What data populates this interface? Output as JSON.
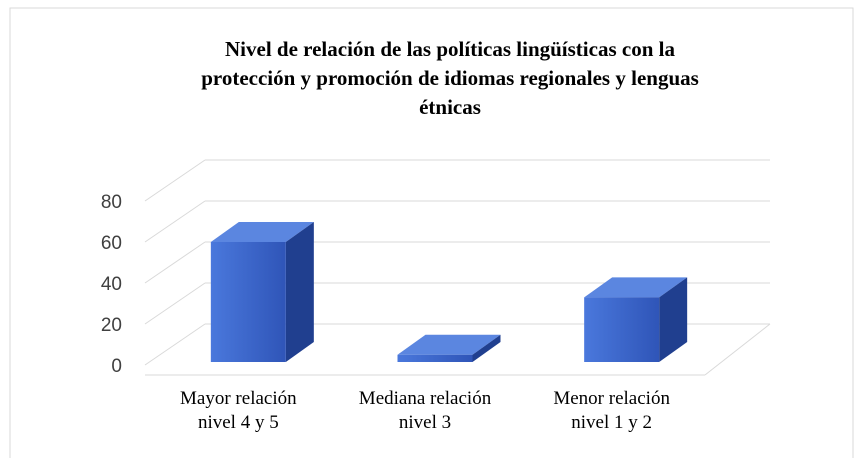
{
  "chart_data": {
    "type": "bar3d",
    "title": [
      "Nivel de relación de las políticas lingüísticas con la",
      "protección y promoción de idiomas regionales y lenguas",
      "étnicas"
    ],
    "categories": [
      [
        "Mayor relación",
        "nivel 4 y 5"
      ],
      [
        "Mediana relación",
        "nivel 3"
      ],
      [
        "Menor relación",
        "nivel 1 y 2"
      ]
    ],
    "values": [
      60,
      5,
      33
    ],
    "color": "#3a62c9",
    "ylim": [
      0,
      80
    ],
    "yticks": [
      0,
      20,
      40,
      60,
      80
    ],
    "grid": true
  }
}
